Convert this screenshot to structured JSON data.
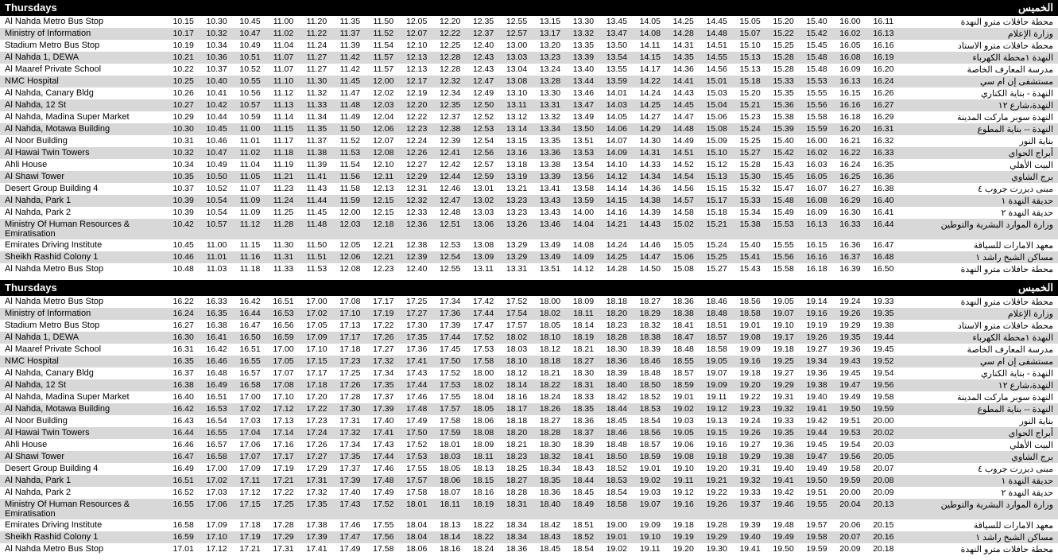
{
  "header_en": "Thursdays",
  "header_ar": "الخميس",
  "stops_en": [
    "Al Nahda Metro Bus Stop",
    "Ministry of Information",
    "Stadium Metro Bus Stop",
    "Al Nahda 1, DEWA",
    "Al Maaref Private School",
    "NMC Hospital",
    "Al Nahda, Canary Bldg",
    "Al Nahda, 12 St",
    "Al Nahda, Madina Super Market",
    "Al Nahda, Motawa Building",
    "Al Noor Building",
    "Al Hawai Twin Towers",
    "Ahli House",
    "Al Shawi Tower",
    "Desert Group Building 4",
    "Al Nahda, Park 1",
    "Al Nahda, Park 2",
    "Ministry Of Human Resources & Emiratisation",
    "Emirates Driving Institute",
    "Sheikh Rashid Colony 1",
    "Al Nahda Metro Bus Stop"
  ],
  "stops_ar": [
    "محطة حافلات مترو النهدة",
    "وزارة الإعلام",
    "محطة حافلات مترو الاستاد",
    "النهدة ١محطة الكهرباء",
    "مدرسة المعارف الخاصة",
    "مستشفى إن ام سي",
    "النهدة - بناية الكناري",
    "النهدة،شارع ١٢",
    "النهدة سوبر ماركت المدينة",
    "النهدة -- بناية المطوع",
    "بناية النور",
    "أبراج الحواي",
    "البيت الأهلي",
    "برج الشاوي",
    "مبنى ديزرت جروب ٤",
    "حديقة النهدة ١",
    "حديقة النهدة ٢",
    "وزارة الموارد البشرية والتوطين",
    "معهد الامارات للسياقة",
    "مساكن الشيخ راشد ١",
    "محطة حافلات مترو النهدة"
  ],
  "block1_times": [
    [
      "10.15",
      "10.30",
      "10.45",
      "11.00",
      "11.20",
      "11.35",
      "11.50",
      "12.05",
      "12.20",
      "12.35",
      "12.55",
      "13.15",
      "13.30",
      "13.45",
      "14.05",
      "14.25",
      "14.45",
      "15.05",
      "15.20",
      "15.40",
      "16.00",
      "16.11"
    ],
    [
      "10.17",
      "10.32",
      "10.47",
      "11.02",
      "11.22",
      "11.37",
      "11.52",
      "12.07",
      "12.22",
      "12.37",
      "12.57",
      "13.17",
      "13.32",
      "13.47",
      "14.08",
      "14.28",
      "14.48",
      "15.07",
      "15.22",
      "15.42",
      "16.02",
      "16.13"
    ],
    [
      "10.19",
      "10.34",
      "10.49",
      "11.04",
      "11.24",
      "11.39",
      "11.54",
      "12.10",
      "12.25",
      "12.40",
      "13.00",
      "13.20",
      "13.35",
      "13.50",
      "14.11",
      "14.31",
      "14.51",
      "15.10",
      "15.25",
      "15.45",
      "16.05",
      "16.16"
    ],
    [
      "10.21",
      "10.36",
      "10.51",
      "11.07",
      "11.27",
      "11.42",
      "11.57",
      "12.13",
      "12.28",
      "12.43",
      "13.03",
      "13.23",
      "13.39",
      "13.54",
      "14.15",
      "14.35",
      "14.55",
      "15.13",
      "15.28",
      "15.48",
      "16.08",
      "16.19"
    ],
    [
      "10.22",
      "10.37",
      "10.52",
      "11.07",
      "11.27",
      "11.42",
      "11.57",
      "12.13",
      "12.28",
      "12.43",
      "13.04",
      "13.24",
      "13.40",
      "13.55",
      "14.17",
      "14.36",
      "14.56",
      "15.13",
      "15.28",
      "15.48",
      "16.09",
      "16.20"
    ],
    [
      "10.25",
      "10.40",
      "10.55",
      "11.10",
      "11.30",
      "11.45",
      "12.00",
      "12.17",
      "12.32",
      "12.47",
      "13.08",
      "13.28",
      "13.44",
      "13.59",
      "14.22",
      "14.41",
      "15.01",
      "15.18",
      "15.33",
      "15.53",
      "16.13",
      "16.24"
    ],
    [
      "10.26",
      "10.41",
      "10.56",
      "11.12",
      "11.32",
      "11.47",
      "12.02",
      "12.19",
      "12.34",
      "12.49",
      "13.10",
      "13.30",
      "13.46",
      "14.01",
      "14.24",
      "14.43",
      "15.03",
      "15.20",
      "15.35",
      "15.55",
      "16.15",
      "16.26"
    ],
    [
      "10.27",
      "10.42",
      "10.57",
      "11.13",
      "11.33",
      "11.48",
      "12.03",
      "12.20",
      "12.35",
      "12.50",
      "13.11",
      "13.31",
      "13.47",
      "14.03",
      "14.25",
      "14.45",
      "15.04",
      "15.21",
      "15.36",
      "15.56",
      "16.16",
      "16.27"
    ],
    [
      "10.29",
      "10.44",
      "10.59",
      "11.14",
      "11.34",
      "11.49",
      "12.04",
      "12.22",
      "12.37",
      "12.52",
      "13.12",
      "13.32",
      "13.49",
      "14.05",
      "14.27",
      "14.47",
      "15.06",
      "15.23",
      "15.38",
      "15.58",
      "16.18",
      "16.29"
    ],
    [
      "10.30",
      "10.45",
      "11.00",
      "11.15",
      "11.35",
      "11.50",
      "12.06",
      "12.23",
      "12.38",
      "12.53",
      "13.14",
      "13.34",
      "13.50",
      "14.06",
      "14.29",
      "14.48",
      "15.08",
      "15.24",
      "15.39",
      "15.59",
      "16.20",
      "16.31"
    ],
    [
      "10.31",
      "10.46",
      "11.01",
      "11.17",
      "11.37",
      "11.52",
      "12.07",
      "12.24",
      "12.39",
      "12.54",
      "13.15",
      "13.35",
      "13.51",
      "14.07",
      "14.30",
      "14.49",
      "15.09",
      "15.25",
      "15.40",
      "16.00",
      "16.21",
      "16.32"
    ],
    [
      "10.32",
      "10.47",
      "11.02",
      "11.18",
      "11.38",
      "11.53",
      "12.08",
      "12.26",
      "12.41",
      "12.56",
      "13.16",
      "13.36",
      "13.53",
      "14.09",
      "14.31",
      "14.51",
      "15.10",
      "15.27",
      "15.42",
      "16.02",
      "16.22",
      "16.33"
    ],
    [
      "10.34",
      "10.49",
      "11.04",
      "11.19",
      "11.39",
      "11.54",
      "12.10",
      "12.27",
      "12.42",
      "12.57",
      "13.18",
      "13.38",
      "13.54",
      "14.10",
      "14.33",
      "14.52",
      "15.12",
      "15.28",
      "15.43",
      "16.03",
      "16.24",
      "16.35"
    ],
    [
      "10.35",
      "10.50",
      "11.05",
      "11.21",
      "11.41",
      "11.56",
      "12.11",
      "12.29",
      "12.44",
      "12.59",
      "13.19",
      "13.39",
      "13.56",
      "14.12",
      "14.34",
      "14.54",
      "15.13",
      "15.30",
      "15.45",
      "16.05",
      "16.25",
      "16.36"
    ],
    [
      "10.37",
      "10.52",
      "11.07",
      "11.23",
      "11.43",
      "11.58",
      "12.13",
      "12.31",
      "12.46",
      "13.01",
      "13.21",
      "13.41",
      "13.58",
      "14.14",
      "14.36",
      "14.56",
      "15.15",
      "15.32",
      "15.47",
      "16.07",
      "16.27",
      "16.38"
    ],
    [
      "10.39",
      "10.54",
      "11.09",
      "11.24",
      "11.44",
      "11.59",
      "12.15",
      "12.32",
      "12.47",
      "13.02",
      "13.23",
      "13.43",
      "13.59",
      "14.15",
      "14.38",
      "14.57",
      "15.17",
      "15.33",
      "15.48",
      "16.08",
      "16.29",
      "16.40"
    ],
    [
      "10.39",
      "10.54",
      "11.09",
      "11.25",
      "11.45",
      "12.00",
      "12.15",
      "12.33",
      "12.48",
      "13.03",
      "13.23",
      "13.43",
      "14.00",
      "14.16",
      "14.39",
      "14.58",
      "15.18",
      "15.34",
      "15.49",
      "16.09",
      "16.30",
      "16.41"
    ],
    [
      "10.42",
      "10.57",
      "11.12",
      "11.28",
      "11.48",
      "12.03",
      "12.18",
      "12.36",
      "12.51",
      "13.06",
      "13.26",
      "13.46",
      "14.04",
      "14.21",
      "14.43",
      "15.02",
      "15.21",
      "15.38",
      "15.53",
      "16.13",
      "16.33",
      "16.44"
    ],
    [
      "10.45",
      "11.00",
      "11.15",
      "11.30",
      "11.50",
      "12.05",
      "12.21",
      "12.38",
      "12.53",
      "13.08",
      "13.29",
      "13.49",
      "14.08",
      "14.24",
      "14.46",
      "15.05",
      "15.24",
      "15.40",
      "15.55",
      "16.15",
      "16.36",
      "16.47"
    ],
    [
      "10.46",
      "11.01",
      "11.16",
      "11.31",
      "11.51",
      "12.06",
      "12.21",
      "12.39",
      "12.54",
      "13.09",
      "13.29",
      "13.49",
      "14.09",
      "14.25",
      "14.47",
      "15.06",
      "15.25",
      "15.41",
      "15.56",
      "16.16",
      "16.37",
      "16.48"
    ],
    [
      "10.48",
      "11.03",
      "11.18",
      "11.33",
      "11.53",
      "12.08",
      "12.23",
      "12.40",
      "12.55",
      "13.11",
      "13.31",
      "13.51",
      "14.12",
      "14.28",
      "14.50",
      "15.08",
      "15.27",
      "15.43",
      "15.58",
      "16.18",
      "16.39",
      "16.50"
    ]
  ],
  "block2_times": [
    [
      "16.22",
      "16.33",
      "16.42",
      "16.51",
      "17.00",
      "17.08",
      "17.17",
      "17.25",
      "17.34",
      "17.42",
      "17.52",
      "18.00",
      "18.09",
      "18.18",
      "18.27",
      "18.36",
      "18.46",
      "18.56",
      "19.05",
      "19.14",
      "19.24",
      "19.33"
    ],
    [
      "16.24",
      "16.35",
      "16.44",
      "16.53",
      "17.02",
      "17.10",
      "17.19",
      "17.27",
      "17.36",
      "17.44",
      "17.54",
      "18.02",
      "18.11",
      "18.20",
      "18.29",
      "18.38",
      "18.48",
      "18.58",
      "19.07",
      "19.16",
      "19.26",
      "19.35"
    ],
    [
      "16.27",
      "16.38",
      "16.47",
      "16.56",
      "17.05",
      "17.13",
      "17.22",
      "17.30",
      "17.39",
      "17.47",
      "17.57",
      "18.05",
      "18.14",
      "18.23",
      "18.32",
      "18.41",
      "18.51",
      "19.01",
      "19.10",
      "19.19",
      "19.29",
      "19.38"
    ],
    [
      "16.30",
      "16.41",
      "16.50",
      "16.59",
      "17.09",
      "17.17",
      "17.26",
      "17.35",
      "17.44",
      "17.52",
      "18.02",
      "18.10",
      "18.19",
      "18.28",
      "18.38",
      "18.47",
      "18.57",
      "19.08",
      "19.17",
      "19.26",
      "19.35",
      "19.44"
    ],
    [
      "16.31",
      "16.42",
      "16.51",
      "17.00",
      "17.10",
      "17.18",
      "17.27",
      "17.36",
      "17.45",
      "17.53",
      "18.03",
      "18.12",
      "18.21",
      "18.30",
      "18.39",
      "18.48",
      "18.58",
      "19.09",
      "19.18",
      "19.27",
      "19.36",
      "19.45"
    ],
    [
      "16.35",
      "16.46",
      "16.55",
      "17.05",
      "17.15",
      "17.23",
      "17.32",
      "17.41",
      "17.50",
      "17.58",
      "18.10",
      "18.18",
      "18.27",
      "18.36",
      "18.46",
      "18.55",
      "19.05",
      "19.16",
      "19.25",
      "19.34",
      "19.43",
      "19.52"
    ],
    [
      "16.37",
      "16.48",
      "16.57",
      "17.07",
      "17.17",
      "17.25",
      "17.34",
      "17.43",
      "17.52",
      "18.00",
      "18.12",
      "18.21",
      "18.30",
      "18.39",
      "18.48",
      "18.57",
      "19.07",
      "19.18",
      "19.27",
      "19.36",
      "19.45",
      "19.54"
    ],
    [
      "16.38",
      "16.49",
      "16.58",
      "17.08",
      "17.18",
      "17.26",
      "17.35",
      "17.44",
      "17.53",
      "18.02",
      "18.14",
      "18.22",
      "18.31",
      "18.40",
      "18.50",
      "18.59",
      "19.09",
      "19.20",
      "19.29",
      "19.38",
      "19.47",
      "19.56"
    ],
    [
      "16.40",
      "16.51",
      "17.00",
      "17.10",
      "17.20",
      "17.28",
      "17.37",
      "17.46",
      "17.55",
      "18.04",
      "18.16",
      "18.24",
      "18.33",
      "18.42",
      "18.52",
      "19.01",
      "19.11",
      "19.22",
      "19.31",
      "19.40",
      "19.49",
      "19.58"
    ],
    [
      "16.42",
      "16.53",
      "17.02",
      "17.12",
      "17.22",
      "17.30",
      "17.39",
      "17.48",
      "17.57",
      "18.05",
      "18.17",
      "18.26",
      "18.35",
      "18.44",
      "18.53",
      "19.02",
      "19.12",
      "19.23",
      "19.32",
      "19.41",
      "19.50",
      "19.59"
    ],
    [
      "16.43",
      "16.54",
      "17.03",
      "17.13",
      "17.23",
      "17.31",
      "17.40",
      "17.49",
      "17.58",
      "18.06",
      "18.18",
      "18.27",
      "18.36",
      "18.45",
      "18.54",
      "19.03",
      "19.13",
      "19.24",
      "19.33",
      "19.42",
      "19.51",
      "20.00"
    ],
    [
      "16.44",
      "16.55",
      "17.04",
      "17.14",
      "17.24",
      "17.32",
      "17.41",
      "17.50",
      "17.59",
      "18.08",
      "18.20",
      "18.28",
      "18.37",
      "18.46",
      "18.56",
      "19.05",
      "19.15",
      "19.26",
      "19.35",
      "19.44",
      "19.53",
      "20.02"
    ],
    [
      "16.46",
      "16.57",
      "17.06",
      "17.16",
      "17.26",
      "17.34",
      "17.43",
      "17.52",
      "18.01",
      "18.09",
      "18.21",
      "18.30",
      "18.39",
      "18.48",
      "18.57",
      "19.06",
      "19.16",
      "19.27",
      "19.36",
      "19.45",
      "19.54",
      "20.03"
    ],
    [
      "16.47",
      "16.58",
      "17.07",
      "17.17",
      "17.27",
      "17.35",
      "17.44",
      "17.53",
      "18.03",
      "18.11",
      "18.23",
      "18.32",
      "18.41",
      "18.50",
      "18.59",
      "19.08",
      "19.18",
      "19.29",
      "19.38",
      "19.47",
      "19.56",
      "20.05"
    ],
    [
      "16.49",
      "17.00",
      "17.09",
      "17.19",
      "17.29",
      "17.37",
      "17.46",
      "17.55",
      "18.05",
      "18.13",
      "18.25",
      "18.34",
      "18.43",
      "18.52",
      "19.01",
      "19.10",
      "19.20",
      "19.31",
      "19.40",
      "19.49",
      "19.58",
      "20.07"
    ],
    [
      "16.51",
      "17.02",
      "17.11",
      "17.21",
      "17.31",
      "17.39",
      "17.48",
      "17.57",
      "18.06",
      "18.15",
      "18.27",
      "18.35",
      "18.44",
      "18.53",
      "19.02",
      "19.11",
      "19.21",
      "19.32",
      "19.41",
      "19.50",
      "19.59",
      "20.08"
    ],
    [
      "16.52",
      "17.03",
      "17.12",
      "17.22",
      "17.32",
      "17.40",
      "17.49",
      "17.58",
      "18.07",
      "18.16",
      "18.28",
      "18.36",
      "18.45",
      "18.54",
      "19.03",
      "19.12",
      "19.22",
      "19.33",
      "19.42",
      "19.51",
      "20.00",
      "20.09"
    ],
    [
      "16.55",
      "17.06",
      "17.15",
      "17.25",
      "17.35",
      "17.43",
      "17.52",
      "18.01",
      "18.11",
      "18.19",
      "18.31",
      "18.40",
      "18.49",
      "18.58",
      "19.07",
      "19.16",
      "19.26",
      "19.37",
      "19.46",
      "19.55",
      "20.04",
      "20.13"
    ],
    [
      "16.58",
      "17.09",
      "17.18",
      "17.28",
      "17.38",
      "17.46",
      "17.55",
      "18.04",
      "18.13",
      "18.22",
      "18.34",
      "18.42",
      "18.51",
      "19.00",
      "19.09",
      "19.18",
      "19.28",
      "19.39",
      "19.48",
      "19.57",
      "20.06",
      "20.15"
    ],
    [
      "16.59",
      "17.10",
      "17.19",
      "17.29",
      "17.39",
      "17.47",
      "17.56",
      "18.04",
      "18.14",
      "18.22",
      "18.34",
      "18.43",
      "18.52",
      "19.01",
      "19.10",
      "19.19",
      "19.29",
      "19.40",
      "19.49",
      "19.58",
      "20.07",
      "20.16"
    ],
    [
      "17.01",
      "17.12",
      "17.21",
      "17.31",
      "17.41",
      "17.49",
      "17.58",
      "18.06",
      "18.16",
      "18.24",
      "18.36",
      "18.45",
      "18.54",
      "19.02",
      "19.11",
      "19.20",
      "19.30",
      "19.41",
      "19.50",
      "19.59",
      "20.09",
      "20.18"
    ]
  ]
}
